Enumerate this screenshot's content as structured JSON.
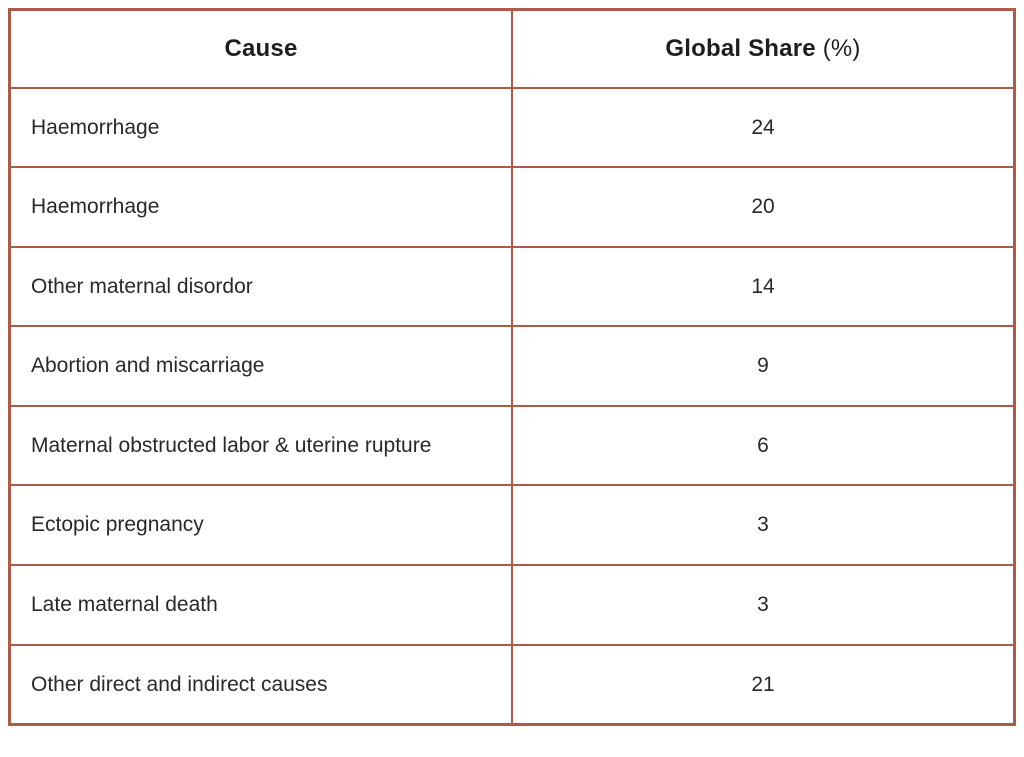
{
  "accent_color": "#ad5a49",
  "table": {
    "header": {
      "cause": "Cause",
      "share_label": "Global Share",
      "share_unit": "(%)"
    },
    "rows": [
      {
        "cause": "Haemorrhage",
        "share": "24"
      },
      {
        "cause": "Haemorrhage",
        "share": "20"
      },
      {
        "cause": "Other maternal disordor",
        "share": "14"
      },
      {
        "cause": "Abortion and miscarriage",
        "share": "9"
      },
      {
        "cause": "Maternal obstructed labor & uterine rupture",
        "share": "6"
      },
      {
        "cause": "Ectopic pregnancy",
        "share": "3"
      },
      {
        "cause": "Late maternal death",
        "share": "3"
      },
      {
        "cause": "Other direct and indirect causes",
        "share": "21"
      }
    ]
  },
  "chart_data": {
    "type": "table",
    "title": "",
    "columns": [
      "Cause",
      "Global Share (%)"
    ],
    "rows": [
      [
        "Haemorrhage",
        24
      ],
      [
        "Haemorrhage",
        20
      ],
      [
        "Other maternal disordor",
        14
      ],
      [
        "Abortion and miscarriage",
        9
      ],
      [
        "Maternal obstructed labor & uterine rupture",
        6
      ],
      [
        "Ectopic pregnancy",
        3
      ],
      [
        "Late maternal death",
        3
      ],
      [
        "Other direct and indirect causes",
        21
      ]
    ]
  }
}
